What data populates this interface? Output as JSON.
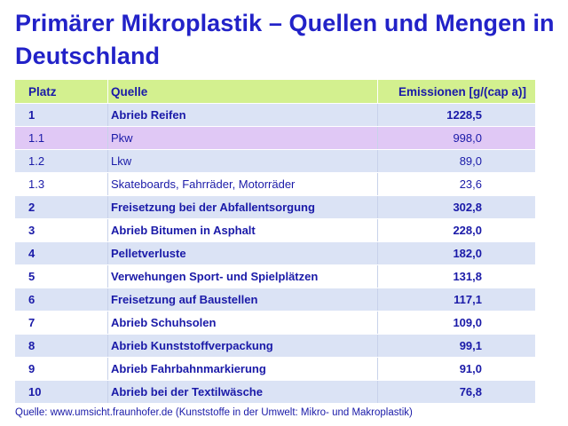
{
  "title": "Primärer Mikroplastik – Quellen und Mengen in Deutschland",
  "table": {
    "headers": [
      "Platz",
      "Quelle",
      "Emissionen [g/(cap a)]"
    ],
    "rows": [
      {
        "rank": "1",
        "source": "Abrieb Reifen",
        "value": "1228,5",
        "bold": true
      },
      {
        "rank": "1.1",
        "source": "Pkw",
        "value": "998,0",
        "bold": false,
        "highlight": true
      },
      {
        "rank": "1.2",
        "source": "Lkw",
        "value": "89,0",
        "bold": false
      },
      {
        "rank": "1.3",
        "source": "Skateboards, Fahrräder, Motorräder",
        "value": "23,6",
        "bold": false
      },
      {
        "rank": "2",
        "source": "Freisetzung bei der Abfallentsorgung",
        "value": "302,8",
        "bold": true
      },
      {
        "rank": "3",
        "source": "Abrieb Bitumen in Asphalt",
        "value": "228,0",
        "bold": true
      },
      {
        "rank": "4",
        "source": "Pelletverluste",
        "value": "182,0",
        "bold": true
      },
      {
        "rank": "5",
        "source": "Verwehungen Sport- und Spielplätzen",
        "value": "131,8",
        "bold": true
      },
      {
        "rank": "6",
        "source": "Freisetzung auf Baustellen",
        "value": "117,1",
        "bold": true
      },
      {
        "rank": "7",
        "source": "Abrieb Schuhsolen",
        "value": "109,0",
        "bold": true
      },
      {
        "rank": "8",
        "source": "Abrieb Kunststoffverpackung",
        "value": "99,1",
        "bold": true
      },
      {
        "rank": "9",
        "source": "Abrieb  Fahrbahnmarkierung",
        "value": "91,0",
        "bold": true
      },
      {
        "rank": "10",
        "source": "Abrieb  bei der Textilwäsche",
        "value": "76,8",
        "bold": true
      }
    ]
  },
  "footer": "Quelle: www.umsicht.fraunhofer.de (Kunststoffe in der Umwelt: Mikro- und Makroplastik)",
  "colors": {
    "title": "#2222c8",
    "header_bg": "#d3f08f",
    "row_alt_bg": "#dbe3f5",
    "highlight_bg": "#e0c8f5"
  }
}
